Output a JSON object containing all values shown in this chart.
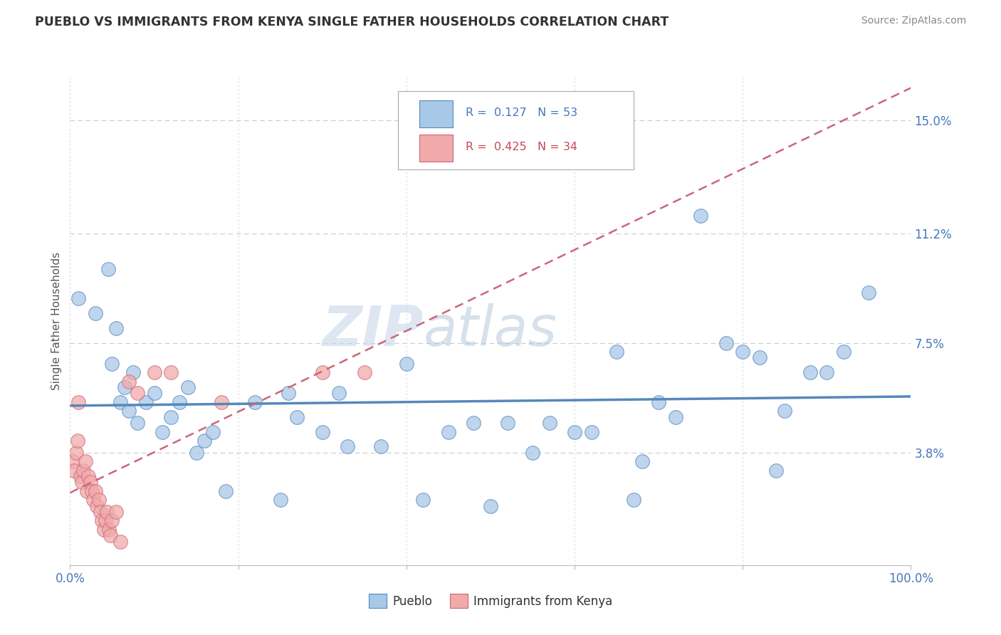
{
  "title": "PUEBLO VS IMMIGRANTS FROM KENYA SINGLE FATHER HOUSEHOLDS CORRELATION CHART",
  "source": "Source: ZipAtlas.com",
  "ylabel": "Single Father Households",
  "xlim": [
    0,
    100
  ],
  "ylim": [
    0,
    16.5
  ],
  "yticks": [
    3.8,
    7.5,
    11.2,
    15.0
  ],
  "ytick_labels": [
    "3.8%",
    "7.5%",
    "11.2%",
    "15.0%"
  ],
  "xtick_positions": [
    0,
    20,
    40,
    60,
    80,
    100
  ],
  "xtick_labels": [
    "0.0%",
    "",
    "",
    "",
    "",
    "100.0%"
  ],
  "legend_label1": "Pueblo",
  "legend_label2": "Immigrants from Kenya",
  "color_blue": "#a8c8e8",
  "color_pink": "#f0aaaa",
  "color_blue_dark": "#5588bb",
  "color_pink_dark": "#cc6677",
  "color_blue_text": "#4477bb",
  "color_pink_text": "#cc4455",
  "watermark_zip": "ZIP",
  "watermark_atlas": "atlas",
  "background": "#ffffff",
  "grid_color": "#cccccc",
  "blue_points": [
    [
      1.0,
      9.0
    ],
    [
      3.0,
      8.5
    ],
    [
      4.5,
      10.0
    ],
    [
      5.0,
      6.8
    ],
    [
      5.5,
      8.0
    ],
    [
      6.0,
      5.5
    ],
    [
      6.5,
      6.0
    ],
    [
      7.0,
      5.2
    ],
    [
      7.5,
      6.5
    ],
    [
      8.0,
      4.8
    ],
    [
      9.0,
      5.5
    ],
    [
      10.0,
      5.8
    ],
    [
      11.0,
      4.5
    ],
    [
      12.0,
      5.0
    ],
    [
      13.0,
      5.5
    ],
    [
      14.0,
      6.0
    ],
    [
      15.0,
      3.8
    ],
    [
      16.0,
      4.2
    ],
    [
      17.0,
      4.5
    ],
    [
      18.5,
      2.5
    ],
    [
      22.0,
      5.5
    ],
    [
      25.0,
      2.2
    ],
    [
      26.0,
      5.8
    ],
    [
      27.0,
      5.0
    ],
    [
      30.0,
      4.5
    ],
    [
      32.0,
      5.8
    ],
    [
      33.0,
      4.0
    ],
    [
      37.0,
      4.0
    ],
    [
      40.0,
      6.8
    ],
    [
      42.0,
      2.2
    ],
    [
      45.0,
      4.5
    ],
    [
      48.0,
      4.8
    ],
    [
      50.0,
      2.0
    ],
    [
      52.0,
      4.8
    ],
    [
      55.0,
      3.8
    ],
    [
      57.0,
      4.8
    ],
    [
      60.0,
      4.5
    ],
    [
      62.0,
      4.5
    ],
    [
      65.0,
      7.2
    ],
    [
      67.0,
      2.2
    ],
    [
      68.0,
      3.5
    ],
    [
      70.0,
      5.5
    ],
    [
      72.0,
      5.0
    ],
    [
      75.0,
      11.8
    ],
    [
      78.0,
      7.5
    ],
    [
      80.0,
      7.2
    ],
    [
      82.0,
      7.0
    ],
    [
      84.0,
      3.2
    ],
    [
      85.0,
      5.2
    ],
    [
      88.0,
      6.5
    ],
    [
      90.0,
      6.5
    ],
    [
      92.0,
      7.2
    ],
    [
      95.0,
      9.2
    ]
  ],
  "pink_points": [
    [
      0.3,
      3.5
    ],
    [
      0.5,
      3.2
    ],
    [
      0.7,
      3.8
    ],
    [
      0.9,
      4.2
    ],
    [
      1.0,
      5.5
    ],
    [
      1.2,
      3.0
    ],
    [
      1.4,
      2.8
    ],
    [
      1.6,
      3.2
    ],
    [
      1.8,
      3.5
    ],
    [
      2.0,
      2.5
    ],
    [
      2.2,
      3.0
    ],
    [
      2.4,
      2.8
    ],
    [
      2.6,
      2.5
    ],
    [
      2.8,
      2.2
    ],
    [
      3.0,
      2.5
    ],
    [
      3.2,
      2.0
    ],
    [
      3.4,
      2.2
    ],
    [
      3.6,
      1.8
    ],
    [
      3.8,
      1.5
    ],
    [
      4.0,
      1.2
    ],
    [
      4.2,
      1.5
    ],
    [
      4.4,
      1.8
    ],
    [
      4.6,
      1.2
    ],
    [
      4.8,
      1.0
    ],
    [
      5.0,
      1.5
    ],
    [
      5.5,
      1.8
    ],
    [
      6.0,
      0.8
    ],
    [
      7.0,
      6.2
    ],
    [
      8.0,
      5.8
    ],
    [
      10.0,
      6.5
    ],
    [
      12.0,
      6.5
    ],
    [
      18.0,
      5.5
    ],
    [
      30.0,
      6.5
    ],
    [
      35.0,
      6.5
    ]
  ]
}
